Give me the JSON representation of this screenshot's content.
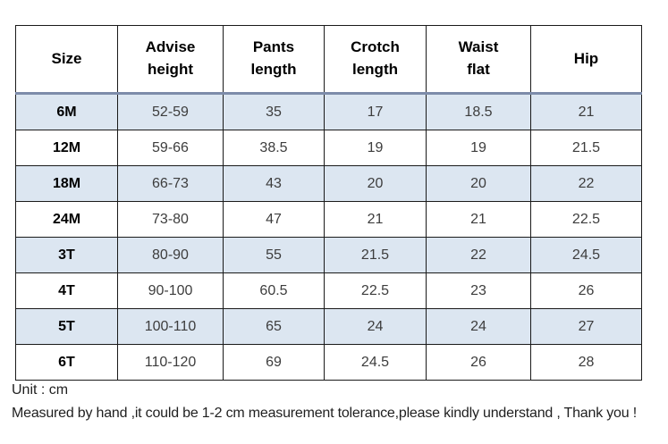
{
  "table": {
    "headers": [
      "Size",
      "Advise\nheight",
      "Pants\nlength",
      "Crotch\nlength",
      "Waist\nflat",
      "Hip"
    ],
    "rows": [
      [
        "6M",
        "52-59",
        "35",
        "17",
        "18.5",
        "21"
      ],
      [
        "12M",
        "59-66",
        "38.5",
        "19",
        "19",
        "21.5"
      ],
      [
        "18M",
        "66-73",
        "43",
        "20",
        "20",
        "22"
      ],
      [
        "24M",
        "73-80",
        "47",
        "21",
        "21",
        "22.5"
      ],
      [
        "3T",
        "80-90",
        "55",
        "21.5",
        "22",
        "24.5"
      ],
      [
        "4T",
        "90-100",
        "60.5",
        "22.5",
        "23",
        "26"
      ],
      [
        "5T",
        "100-110",
        "65",
        "24",
        "24",
        "27"
      ],
      [
        "6T",
        "110-120",
        "69",
        "24.5",
        "26",
        "28"
      ]
    ]
  },
  "footer": {
    "unit": "Unit : cm",
    "note": "Measured by hand ,it could be 1-2 cm measurement tolerance,please kindly understand , Thank you !"
  },
  "colors": {
    "row_shade": "#dce6f1",
    "header_rule": "#7d8caa",
    "cell_border": "#1a1a1a"
  }
}
